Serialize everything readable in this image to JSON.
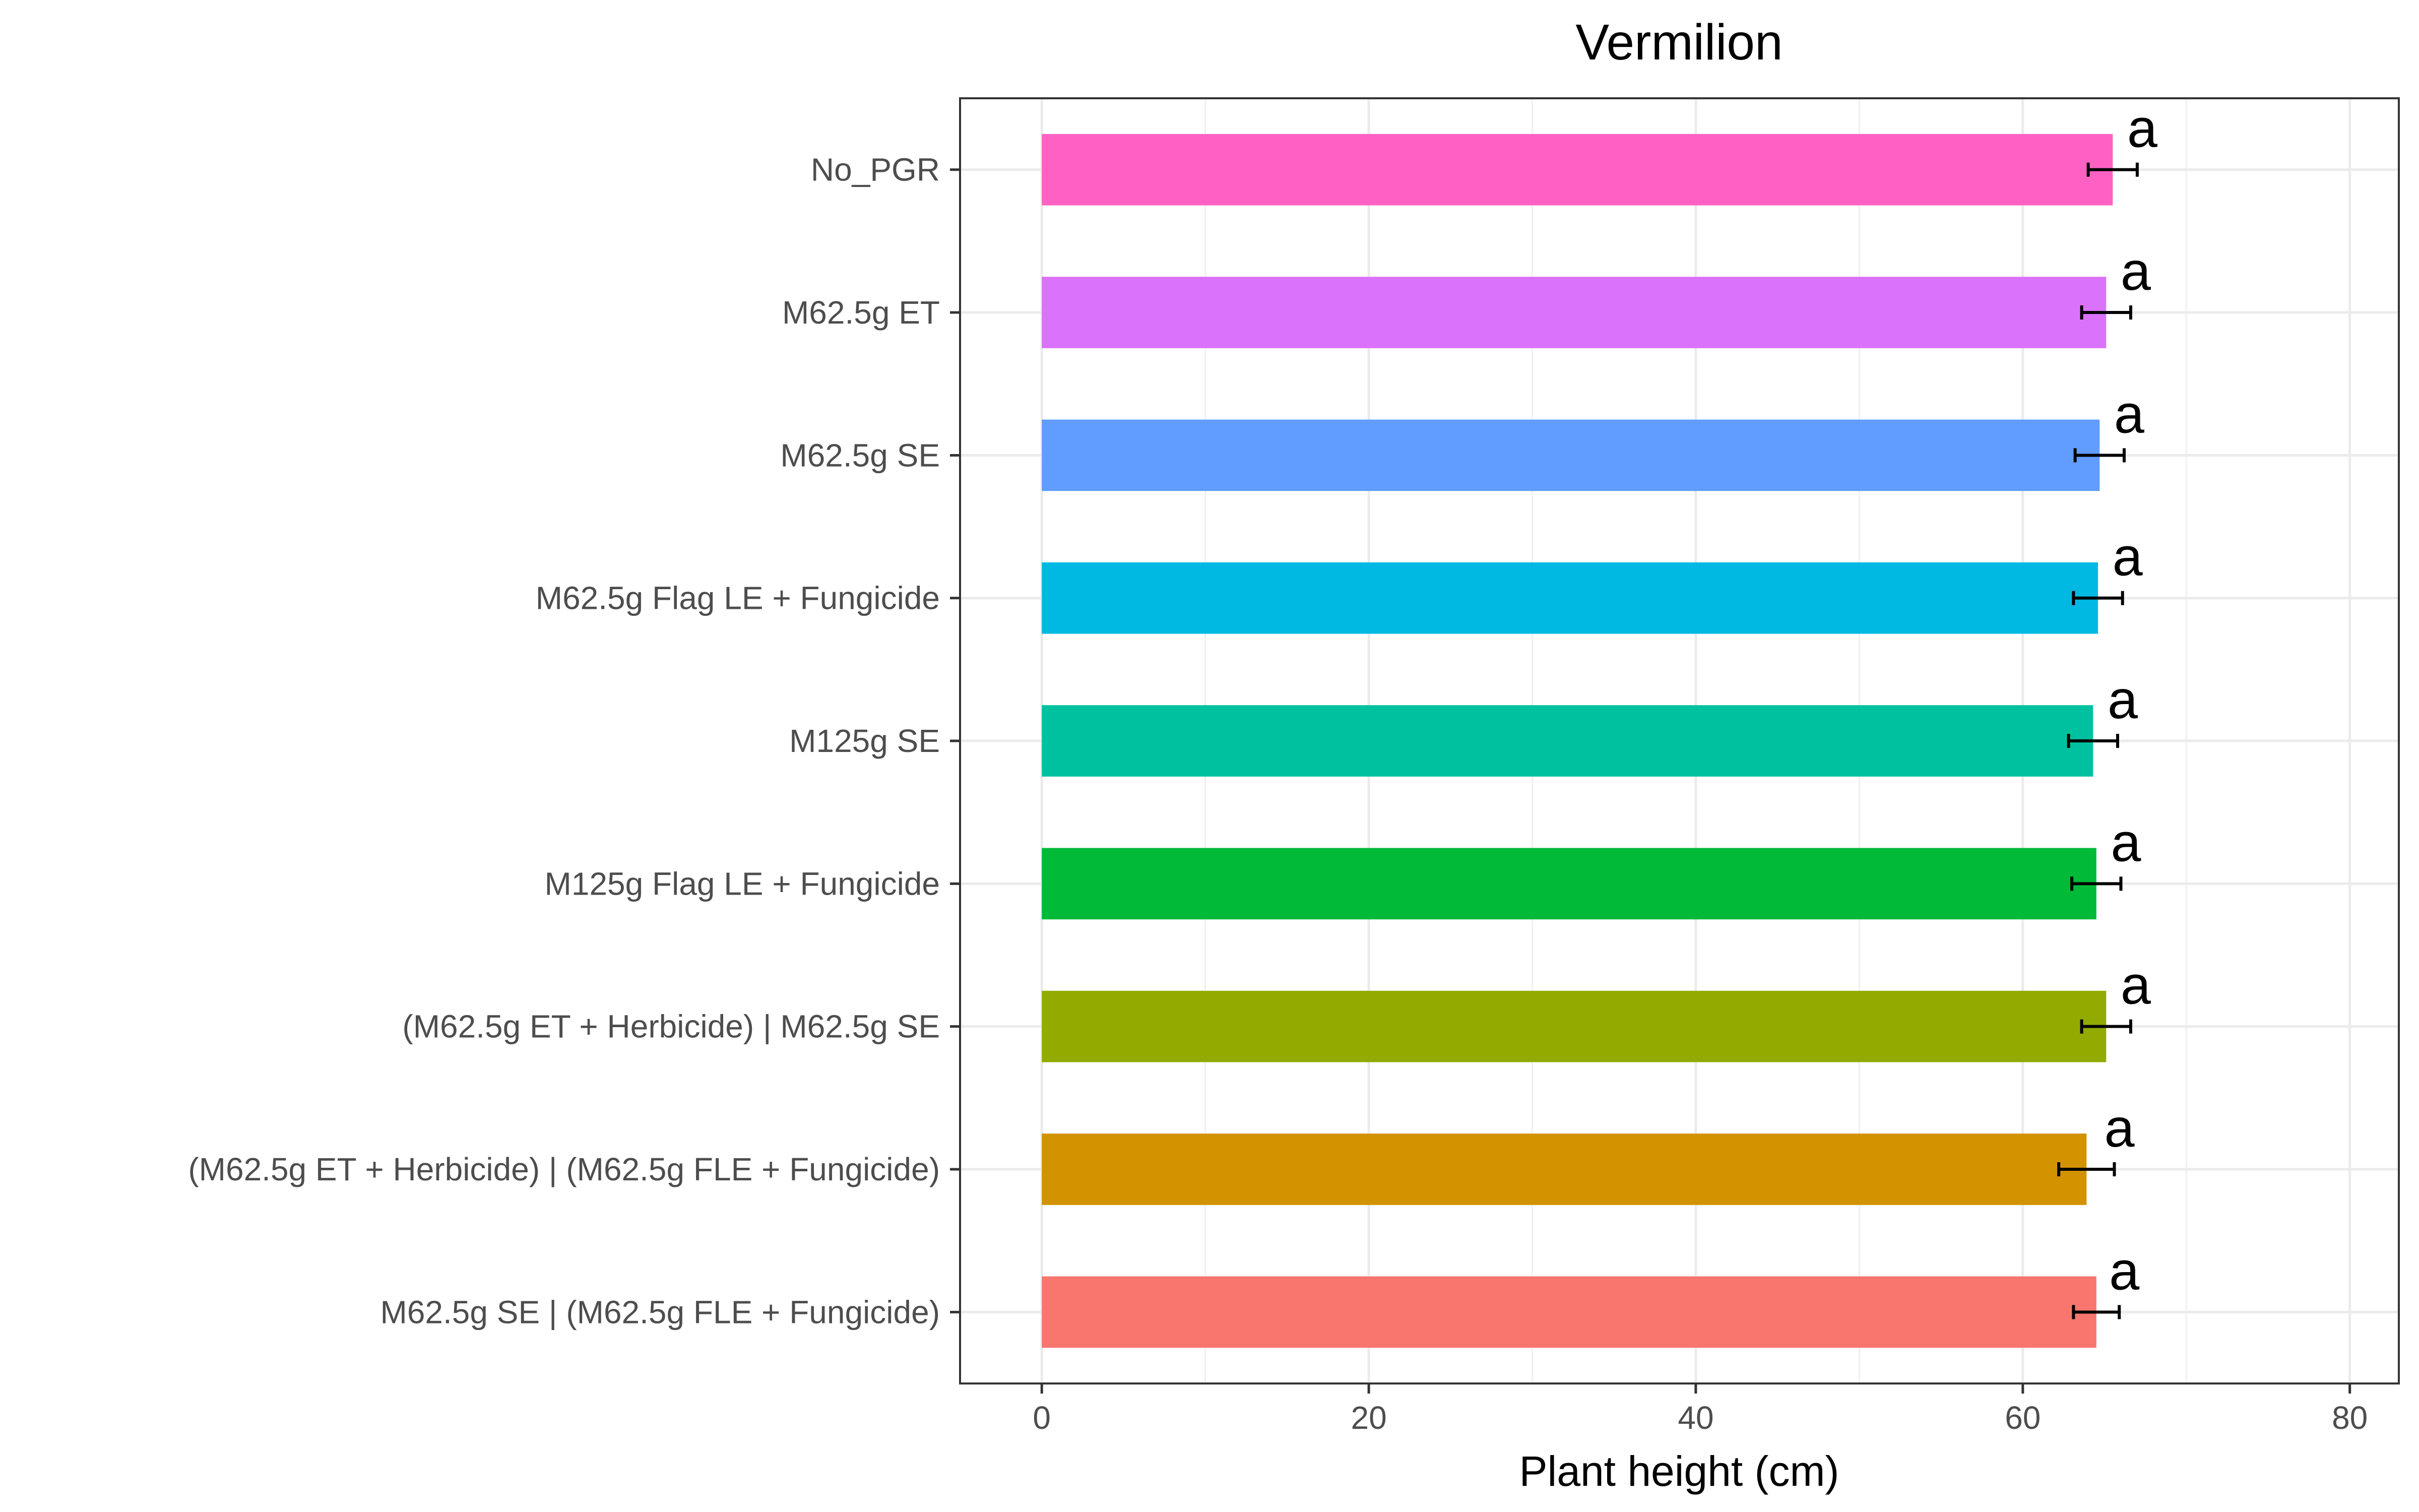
{
  "chart_data": {
    "type": "bar",
    "orientation": "horizontal",
    "title": "Vermilion",
    "xlabel": "Plant height (cm)",
    "ylabel": "",
    "xlim": [
      -5,
      83
    ],
    "x_ticks": [
      0,
      20,
      40,
      60,
      80
    ],
    "grid": true,
    "legend": "none",
    "categories": [
      "No_PGR",
      "M62.5g ET",
      "M62.5g SE",
      "M62.5g Flag LE + Fungicide",
      "M125g SE",
      "M125g Flag LE + Fungicide",
      "(M62.5g ET + Herbicide) | M62.5g SE",
      "(M62.5g ET + Herbicide) | (M62.5g FLE + Fungicide)",
      "M62.5g SE | (M62.5g FLE + Fungicide)"
    ],
    "values": [
      65.5,
      65.1,
      64.7,
      64.6,
      64.3,
      64.5,
      65.1,
      63.9,
      64.5
    ],
    "error": [
      1.5,
      1.5,
      1.5,
      1.5,
      1.5,
      1.5,
      1.5,
      1.7,
      1.4
    ],
    "labels": [
      "a",
      "a",
      "a",
      "a",
      "a",
      "a",
      "a",
      "a",
      "a"
    ],
    "colors": [
      "#FF61C3",
      "#DB72FB",
      "#619CFF",
      "#00B9E3",
      "#00C19F",
      "#00BA38",
      "#93AA00",
      "#D39200",
      "#F8766D"
    ]
  }
}
